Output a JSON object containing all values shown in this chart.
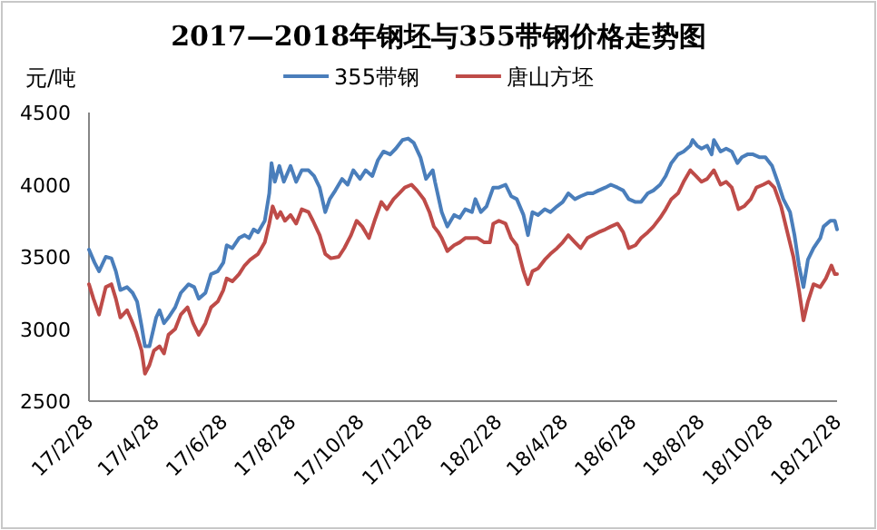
{
  "chart_data": {
    "type": "line",
    "title": "2017—2018年钢坯与355带钢价格走势图",
    "ylabel": "元/吨",
    "legend": "top",
    "grid": false,
    "xlim": [
      "2017-02-28",
      "2018-12-28"
    ],
    "xticks": [
      {
        "value": "2017-02-28",
        "label": "17/2/28"
      },
      {
        "value": "2017-04-28",
        "label": "17/4/28"
      },
      {
        "value": "2017-06-28",
        "label": "17/6/28"
      },
      {
        "value": "2017-08-28",
        "label": "17/8/28"
      },
      {
        "value": "2017-10-28",
        "label": "17/10/28"
      },
      {
        "value": "2017-12-28",
        "label": "17/12/28"
      },
      {
        "value": "2018-02-28",
        "label": "18/2/28"
      },
      {
        "value": "2018-04-28",
        "label": "18/4/28"
      },
      {
        "value": "2018-06-28",
        "label": "18/6/28"
      },
      {
        "value": "2018-08-28",
        "label": "18/8/28"
      },
      {
        "value": "2018-10-28",
        "label": "18/10/28"
      },
      {
        "value": "2018-12-28",
        "label": "18/12/28"
      }
    ],
    "ylim": [
      2500,
      4500
    ],
    "yticks": [
      2500,
      3000,
      3500,
      4000,
      4500
    ],
    "series": [
      {
        "name": "355带钢",
        "color": "#4a7ebb",
        "x": [
          "2017-02-28",
          "2017-03-05",
          "2017-03-09",
          "2017-03-15",
          "2017-03-20",
          "2017-03-24",
          "2017-03-28",
          "2017-04-03",
          "2017-04-08",
          "2017-04-12",
          "2017-04-16",
          "2017-04-19",
          "2017-04-23",
          "2017-04-29",
          "2017-05-02",
          "2017-05-06",
          "2017-05-10",
          "2017-05-16",
          "2017-05-21",
          "2017-05-28",
          "2017-06-02",
          "2017-06-06",
          "2017-06-12",
          "2017-06-17",
          "2017-06-23",
          "2017-06-28",
          "2017-07-01",
          "2017-07-06",
          "2017-07-12",
          "2017-07-17",
          "2017-07-21",
          "2017-07-25",
          "2017-07-29",
          "2017-08-04",
          "2017-08-08",
          "2017-08-10",
          "2017-08-13",
          "2017-08-17",
          "2017-08-21",
          "2017-08-27",
          "2017-09-01",
          "2017-09-06",
          "2017-09-12",
          "2017-09-17",
          "2017-09-22",
          "2017-09-27",
          "2017-10-01",
          "2017-10-06",
          "2017-10-12",
          "2017-10-17",
          "2017-10-22",
          "2017-10-28",
          "2017-11-02",
          "2017-11-08",
          "2017-11-13",
          "2017-11-18",
          "2017-11-24",
          "2017-11-29",
          "2017-12-05",
          "2017-12-10",
          "2017-12-15",
          "2017-12-21",
          "2017-12-26",
          "2018-01-01",
          "2018-01-03",
          "2018-01-09",
          "2018-01-14",
          "2018-01-20",
          "2018-01-25",
          "2018-01-30",
          "2018-02-05",
          "2018-02-08",
          "2018-02-13",
          "2018-02-18",
          "2018-02-24",
          "2018-03-01",
          "2018-03-07",
          "2018-03-12",
          "2018-03-17",
          "2018-03-23",
          "2018-03-27",
          "2018-03-31",
          "2018-04-05",
          "2018-04-11",
          "2018-04-16",
          "2018-04-22",
          "2018-04-27",
          "2018-05-02",
          "2018-05-08",
          "2018-05-13",
          "2018-05-19",
          "2018-05-24",
          "2018-05-29",
          "2018-06-04",
          "2018-06-09",
          "2018-06-15",
          "2018-06-20",
          "2018-06-25",
          "2018-07-01",
          "2018-07-06",
          "2018-07-12",
          "2018-07-17",
          "2018-07-23",
          "2018-07-28",
          "2018-08-02",
          "2018-08-08",
          "2018-08-13",
          "2018-08-19",
          "2018-08-21",
          "2018-08-25",
          "2018-08-29",
          "2018-09-03",
          "2018-09-07",
          "2018-09-09",
          "2018-09-15",
          "2018-09-20",
          "2018-09-25",
          "2018-09-30",
          "2018-10-04",
          "2018-10-09",
          "2018-10-14",
          "2018-10-20",
          "2018-10-25",
          "2018-10-31",
          "2018-11-05",
          "2018-11-10",
          "2018-11-16",
          "2018-11-20",
          "2018-11-24",
          "2018-11-28",
          "2018-12-02",
          "2018-12-07",
          "2018-12-13",
          "2018-12-16",
          "2018-12-22",
          "2018-12-26",
          "2018-12-28"
        ],
        "values": [
          3550,
          3460,
          3400,
          3500,
          3490,
          3400,
          3270,
          3290,
          3250,
          3190,
          3020,
          2880,
          2880,
          3080,
          3130,
          3040,
          3080,
          3150,
          3250,
          3310,
          3290,
          3210,
          3250,
          3380,
          3400,
          3460,
          3580,
          3560,
          3630,
          3650,
          3630,
          3690,
          3670,
          3750,
          3940,
          4150,
          4020,
          4130,
          4020,
          4130,
          4020,
          4100,
          4100,
          4060,
          3980,
          3810,
          3900,
          3960,
          4040,
          4000,
          4100,
          4040,
          4100,
          4060,
          4170,
          4230,
          4210,
          4250,
          4310,
          4320,
          4290,
          4190,
          4040,
          4100,
          4020,
          3810,
          3710,
          3790,
          3770,
          3830,
          3810,
          3900,
          3810,
          3850,
          3980,
          3980,
          4000,
          3920,
          3900,
          3790,
          3650,
          3810,
          3790,
          3830,
          3810,
          3850,
          3880,
          3940,
          3900,
          3920,
          3940,
          3940,
          3960,
          3980,
          4000,
          3980,
          3960,
          3900,
          3880,
          3880,
          3940,
          3960,
          4000,
          4060,
          4150,
          4210,
          4230,
          4270,
          4310,
          4270,
          4250,
          4270,
          4210,
          4310,
          4230,
          4250,
          4230,
          4150,
          4190,
          4210,
          4210,
          4190,
          4190,
          4130,
          4020,
          3900,
          3810,
          3650,
          3440,
          3290,
          3480,
          3560,
          3630,
          3710,
          3750,
          3750,
          3690
        ]
      },
      {
        "name": "唐山方坯",
        "color": "#be4b48",
        "x": [
          "2017-02-28",
          "2017-03-04",
          "2017-03-09",
          "2017-03-15",
          "2017-03-20",
          "2017-03-24",
          "2017-03-28",
          "2017-04-03",
          "2017-04-07",
          "2017-04-11",
          "2017-04-16",
          "2017-04-19",
          "2017-04-23",
          "2017-04-27",
          "2017-05-02",
          "2017-05-06",
          "2017-05-10",
          "2017-05-16",
          "2017-05-21",
          "2017-05-27",
          "2017-06-01",
          "2017-06-06",
          "2017-06-12",
          "2017-06-17",
          "2017-06-23",
          "2017-06-28",
          "2017-07-01",
          "2017-07-06",
          "2017-07-12",
          "2017-07-17",
          "2017-07-22",
          "2017-07-29",
          "2017-08-04",
          "2017-08-08",
          "2017-08-11",
          "2017-08-15",
          "2017-08-18",
          "2017-08-22",
          "2017-08-27",
          "2017-09-01",
          "2017-09-06",
          "2017-09-12",
          "2017-09-16",
          "2017-09-22",
          "2017-09-27",
          "2017-10-02",
          "2017-10-09",
          "2017-10-14",
          "2017-10-20",
          "2017-10-25",
          "2017-10-30",
          "2017-11-05",
          "2017-11-10",
          "2017-11-16",
          "2017-11-21",
          "2017-11-27",
          "2017-12-02",
          "2017-12-07",
          "2017-12-13",
          "2017-12-18",
          "2017-12-24",
          "2017-12-29",
          "2018-01-02",
          "2018-01-06",
          "2018-01-09",
          "2018-01-14",
          "2018-01-20",
          "2018-01-25",
          "2018-01-30",
          "2018-02-05",
          "2018-02-10",
          "2018-02-16",
          "2018-02-21",
          "2018-02-24",
          "2018-03-01",
          "2018-03-07",
          "2018-03-12",
          "2018-03-17",
          "2018-03-23",
          "2018-03-27",
          "2018-03-31",
          "2018-04-05",
          "2018-04-11",
          "2018-04-16",
          "2018-04-22",
          "2018-04-27",
          "2018-05-02",
          "2018-05-08",
          "2018-05-13",
          "2018-05-19",
          "2018-05-24",
          "2018-05-29",
          "2018-06-04",
          "2018-06-09",
          "2018-06-15",
          "2018-06-20",
          "2018-06-25",
          "2018-07-01",
          "2018-07-06",
          "2018-07-12",
          "2018-07-17",
          "2018-07-23",
          "2018-07-28",
          "2018-08-02",
          "2018-08-08",
          "2018-08-13",
          "2018-08-19",
          "2018-08-24",
          "2018-08-29",
          "2018-09-03",
          "2018-09-09",
          "2018-09-15",
          "2018-09-20",
          "2018-09-25",
          "2018-10-01",
          "2018-10-06",
          "2018-10-12",
          "2018-10-17",
          "2018-10-23",
          "2018-10-28",
          "2018-11-02",
          "2018-11-08",
          "2018-11-13",
          "2018-11-19",
          "2018-11-24",
          "2018-11-28",
          "2018-12-02",
          "2018-12-07",
          "2018-12-13",
          "2018-12-18",
          "2018-12-23",
          "2018-12-26",
          "2018-12-28"
        ],
        "values": [
          3310,
          3210,
          3100,
          3290,
          3310,
          3210,
          3080,
          3130,
          3060,
          2980,
          2850,
          2690,
          2750,
          2850,
          2880,
          2830,
          2960,
          3000,
          3100,
          3150,
          3040,
          2960,
          3040,
          3150,
          3190,
          3270,
          3350,
          3330,
          3380,
          3440,
          3480,
          3520,
          3600,
          3730,
          3850,
          3770,
          3810,
          3750,
          3790,
          3730,
          3830,
          3810,
          3750,
          3650,
          3520,
          3490,
          3500,
          3560,
          3650,
          3750,
          3710,
          3630,
          3750,
          3880,
          3830,
          3900,
          3940,
          3980,
          4000,
          3960,
          3900,
          3810,
          3710,
          3670,
          3630,
          3540,
          3580,
          3600,
          3630,
          3630,
          3630,
          3600,
          3600,
          3730,
          3750,
          3730,
          3630,
          3580,
          3400,
          3310,
          3400,
          3420,
          3480,
          3520,
          3560,
          3600,
          3650,
          3600,
          3560,
          3630,
          3650,
          3670,
          3690,
          3710,
          3730,
          3670,
          3560,
          3580,
          3630,
          3670,
          3710,
          3770,
          3830,
          3900,
          3940,
          4020,
          4100,
          4060,
          4020,
          4040,
          4100,
          4000,
          4020,
          3980,
          3830,
          3850,
          3900,
          3980,
          4000,
          4020,
          3980,
          3850,
          3690,
          3500,
          3270,
          3060,
          3190,
          3310,
          3290,
          3350,
          3440,
          3380,
          3380
        ]
      }
    ]
  }
}
